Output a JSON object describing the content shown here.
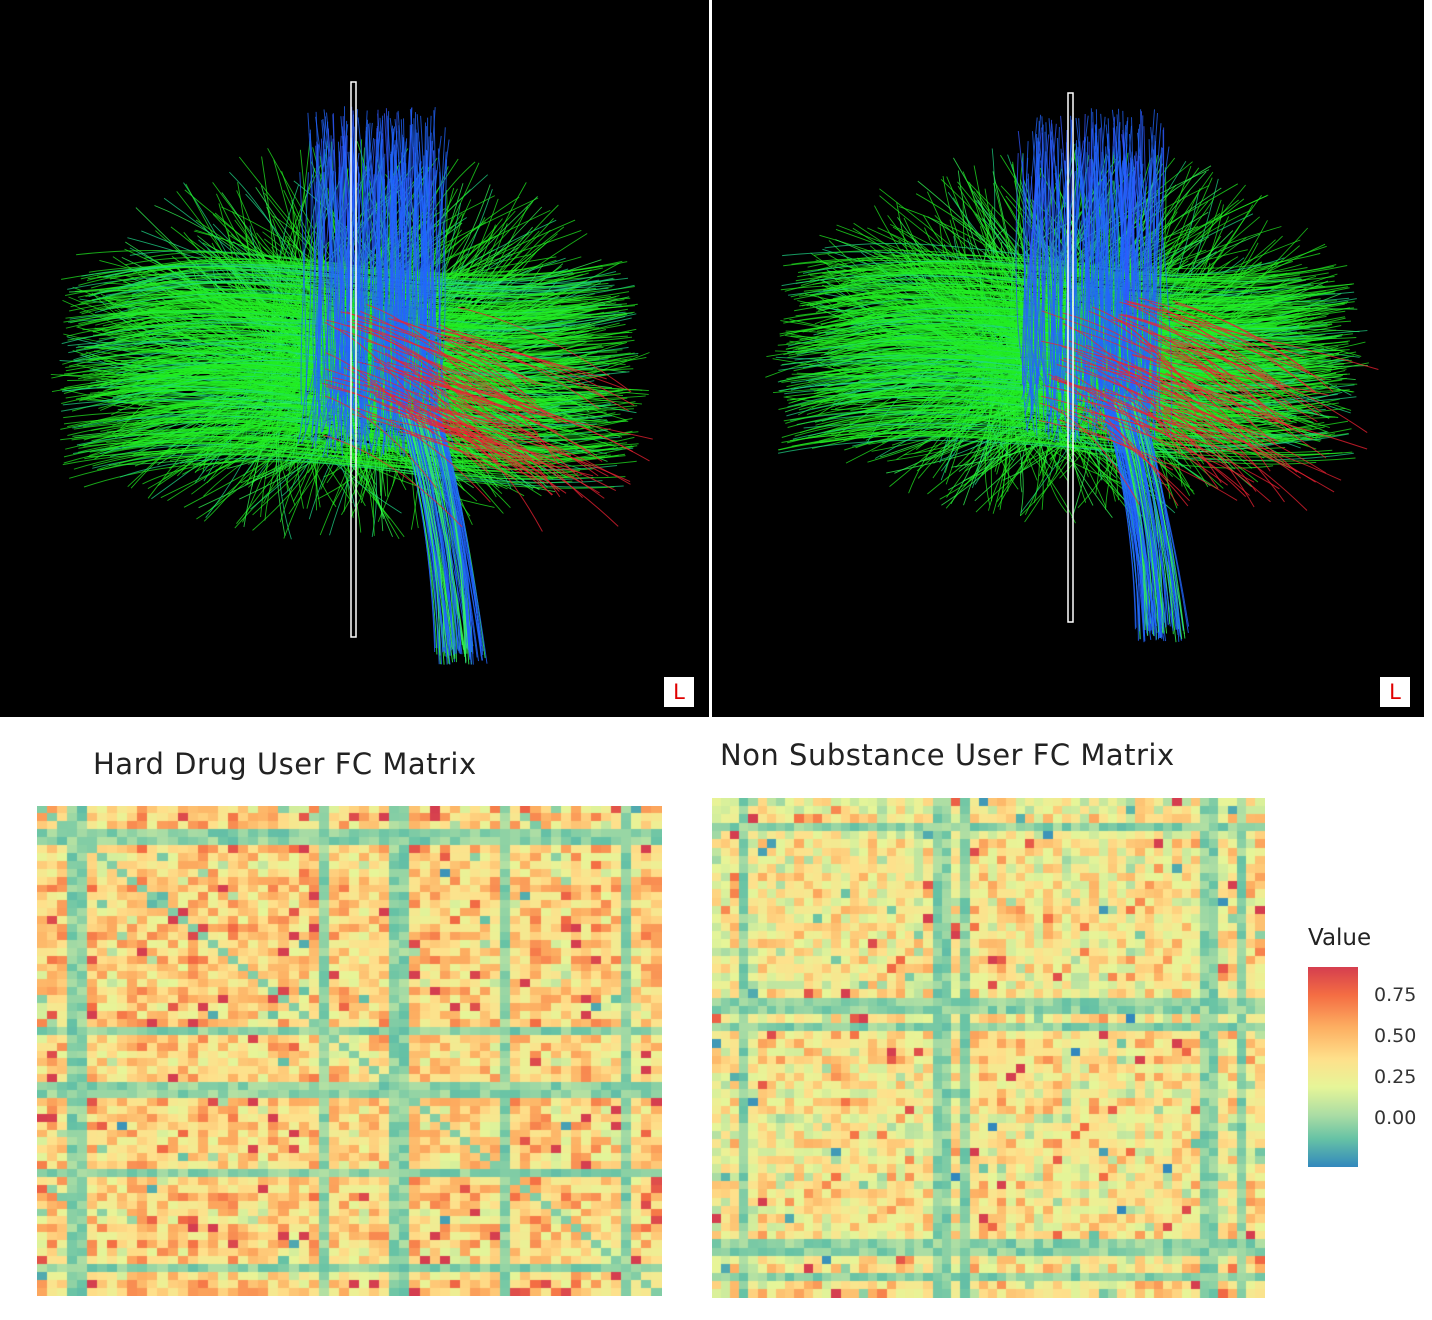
{
  "panels": {
    "tract_left": {
      "orientation_label": "L"
    },
    "tract_right": {
      "orientation_label": "L"
    }
  },
  "matrices": {
    "hard": {
      "title": "Hard Drug User FC Matrix"
    },
    "non": {
      "title": "Non Substance User FC Matrix"
    }
  },
  "legend": {
    "title": "Value",
    "labels": [
      "0.75",
      "0.50",
      "0.25",
      "0.00"
    ],
    "colors": [
      "#d53e4f",
      "#f46d43",
      "#fdae61",
      "#fee08b",
      "#e6f598",
      "#abdda4",
      "#66c2a5",
      "#3288bd"
    ]
  },
  "tract_colors": [
    "#22ee22",
    "#33ff55",
    "#1fd98a",
    "#2266ff",
    "#3355ff",
    "#ee2233"
  ]
}
